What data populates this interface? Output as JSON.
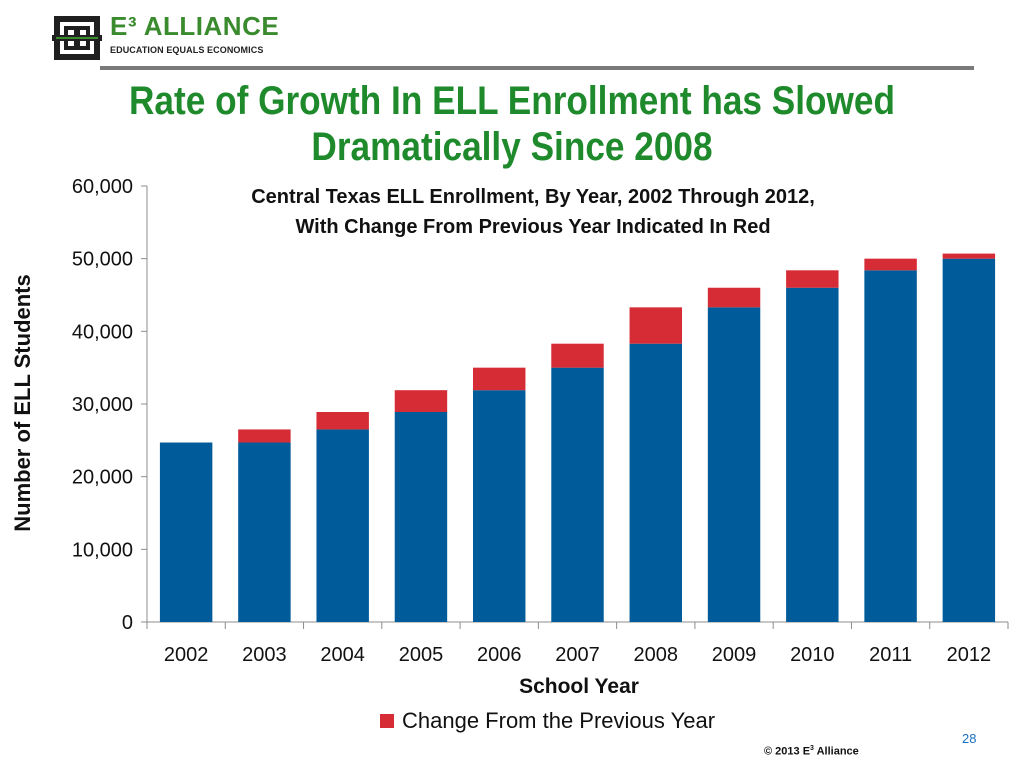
{
  "logo": {
    "main": "E³ ALLIANCE",
    "sub": "EDUCATION EQUALS ECONOMICS",
    "colors": {
      "green": "#3a8a2e",
      "dark": "#222222"
    }
  },
  "slide_title": {
    "line1": "Rate of Growth In ELL Enrollment has Slowed",
    "line2": "Dramatically Since 2008"
  },
  "chart_data": {
    "type": "bar",
    "stacked": true,
    "title": "Central Texas ELL Enrollment, By Year, 2002 Through 2012,",
    "subtitle": "With Change From Previous Year Indicated In Red",
    "xlabel": "School Year",
    "ylabel": "Number of ELL Students",
    "ylim": [
      0,
      60000
    ],
    "yticks": [
      0,
      10000,
      20000,
      30000,
      40000,
      50000,
      60000
    ],
    "ytick_labels": [
      "0",
      "10,000",
      "20,000",
      "30,000",
      "40,000",
      "50,000",
      "60,000"
    ],
    "categories": [
      "2002",
      "2003",
      "2004",
      "2005",
      "2006",
      "2007",
      "2008",
      "2009",
      "2010",
      "2011",
      "2012"
    ],
    "series": [
      {
        "values": [
          24700,
          24700,
          26500,
          28900,
          31900,
          35000,
          38300,
          43300,
          46000,
          48400,
          50000
        ],
        "color": "#005b9a"
      },
      {
        "name": "Change From the Previous Year",
        "values": [
          0,
          1800,
          2400,
          3000,
          3100,
          3300,
          5000,
          2700,
          2400,
          1600,
          700
        ],
        "color": "#d62c36"
      }
    ],
    "legend": "bottom-center",
    "grid": false
  },
  "footer": {
    "page_number": "28",
    "copyright_prefix": "© 2013 E",
    "copyright_sup": "3",
    "copyright_suffix": " Alliance"
  }
}
